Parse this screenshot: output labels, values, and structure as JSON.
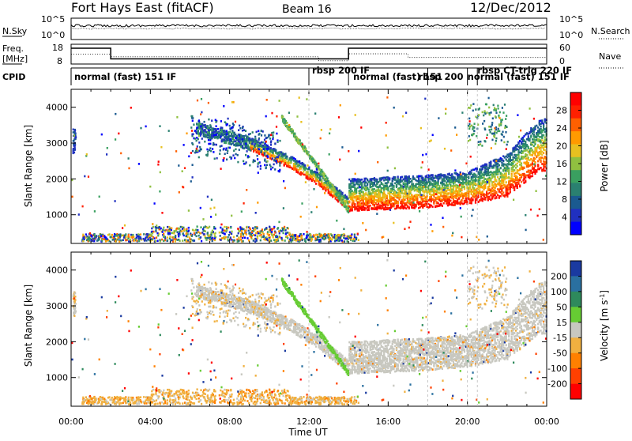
{
  "header": {
    "site": "Fort Hays East (fitACF)",
    "beam": "Beam 16",
    "date": "12/Dec/2012"
  },
  "noise_panel": {
    "left_label": "N.Sky",
    "right_label": "N.Search",
    "left_ticks": [
      "10^5",
      "10^0"
    ],
    "right_ticks": [
      "10^5",
      "10^0"
    ]
  },
  "freq_panel": {
    "left_label": "Freq.",
    "left_unit": "[MHz]",
    "right_label": "Nave",
    "left_ticks": [
      "18",
      "8"
    ],
    "right_ticks": [
      "60",
      "0"
    ],
    "freq_segments": [
      {
        "start": 0.0,
        "end": 2.0,
        "value": 16.0
      },
      {
        "start": 2.0,
        "end": 14.0,
        "value": 10.6
      },
      {
        "start": 14.0,
        "end": 24.0,
        "value": 16.0
      }
    ],
    "nave_segments": [
      {
        "start": 0.0,
        "end": 2.0,
        "value": 30
      },
      {
        "start": 2.0,
        "end": 12.5,
        "value": 22
      },
      {
        "start": 12.5,
        "end": 14.0,
        "value": 10
      },
      {
        "start": 14.0,
        "end": 17.0,
        "value": 31
      },
      {
        "start": 17.0,
        "end": 24.0,
        "value": 20
      }
    ]
  },
  "cpid": {
    "label": "CPID",
    "modes": [
      {
        "text": "normal (fast) 151 IF",
        "start": 0.0
      },
      {
        "text": "rbsp 200 IF",
        "start": 12.0
      },
      {
        "text": "normal (fast) 151",
        "start": 14.0
      },
      {
        "text": "rbsp 200",
        "start": 18.0
      },
      {
        "text": "normal (fast) 151 IF",
        "start": 20.0
      },
      {
        "text": "rbsp CT-trig 220 IF",
        "start": 20.5
      }
    ]
  },
  "chart_data": [
    {
      "type": "heatmap",
      "ylabel": "Slant Range [km]",
      "xlabel": "Time UT",
      "x_ticks": [
        "00:00",
        "04:00",
        "08:00",
        "12:00",
        "16:00",
        "20:00",
        "00:00"
      ],
      "y_ticks": [
        1000,
        2000,
        3000,
        4000
      ],
      "xlim": [
        0,
        24
      ],
      "ylim": [
        200,
        4500
      ],
      "colorbar": {
        "label": "Power [dB]",
        "ticks": [
          4,
          8,
          12,
          16,
          20,
          24,
          28
        ],
        "range": [
          0,
          32
        ],
        "colors": [
          "#0000ff",
          "#2030c0",
          "#1a5a90",
          "#2a8070",
          "#3aa060",
          "#90c040",
          "#e8c020",
          "#ff9a00",
          "#ff6000",
          "#ff2000",
          "#ff0000"
        ]
      },
      "echo_band": {
        "description_points": [
          {
            "t": 6.5,
            "range": 3200
          },
          {
            "t": 9.0,
            "range": 2800
          },
          {
            "t": 11.0,
            "range": 2300
          },
          {
            "t": 12.5,
            "range": 1800
          },
          {
            "t": 14.0,
            "range": 1100
          },
          {
            "t": 16.0,
            "range": 1150
          },
          {
            "t": 18.0,
            "range": 1200
          },
          {
            "t": 20.0,
            "range": 1300
          },
          {
            "t": 22.0,
            "range": 1500
          },
          {
            "t": 23.5,
            "range": 2200
          }
        ]
      }
    },
    {
      "type": "heatmap",
      "ylabel": "Slant Range [km]",
      "xlabel": "Time UT",
      "x_ticks": [
        "00:00",
        "04:00",
        "08:00",
        "12:00",
        "16:00",
        "20:00",
        "00:00"
      ],
      "y_ticks": [
        1000,
        2000,
        3000,
        4000
      ],
      "xlim": [
        0,
        24
      ],
      "ylim": [
        200,
        4500
      ],
      "colorbar": {
        "label": "Velocity [m s",
        "label_sup": "-1",
        "label_end": "]",
        "ticks": [
          200,
          100,
          50,
          15,
          -15,
          -50,
          -100,
          -200
        ],
        "colors": [
          "#1a3aa0",
          "#2a70a0",
          "#2e8a5c",
          "#66cc33",
          "#c8c8c0",
          "#f0b040",
          "#ff8000",
          "#ff4000",
          "#ff0000"
        ]
      }
    }
  ],
  "x_axis_title": "Time UT"
}
